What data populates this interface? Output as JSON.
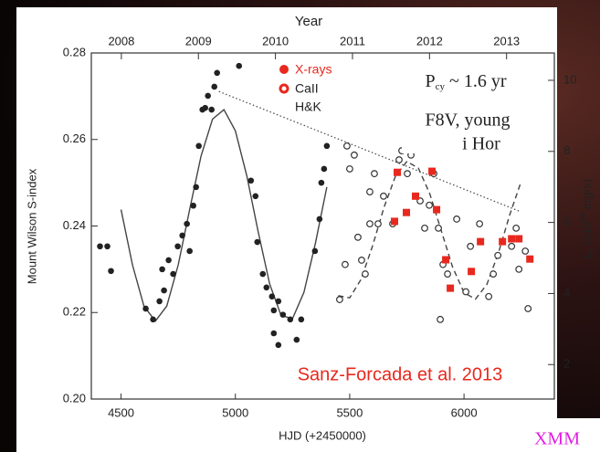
{
  "chart_data": {
    "type": "scatter",
    "xlabel": "HJD (+2450000)",
    "ylabel": "Mount Wilson S-index",
    "y2label": [
      "L",
      "x",
      " (x10",
      "28",
      " erg/s)"
    ],
    "x2label": "Year",
    "xlim": [
      4370,
      6395
    ],
    "xticks": [
      4500,
      5000,
      5500,
      6000
    ],
    "ylim": [
      0.2,
      0.28
    ],
    "yticks": [
      {
        "value": 0.2,
        "label": "0.20"
      },
      0.22,
      0.24,
      0.26,
      0.28
    ],
    "y2lim": [
      1.03,
      10.77
    ],
    "y2ticks": [
      2,
      4,
      6,
      8,
      10
    ],
    "x2lim": [
      2007.61,
      2013.62
    ],
    "x2ticks": [
      2008,
      2009,
      2010,
      2011,
      2012,
      2013
    ],
    "series": [
      {
        "name": "X-rays",
        "color": "#e8281e",
        "marker": "square",
        "axis": "y2",
        "x": [
          5696,
          5748,
          5708,
          5860,
          5788,
          5880,
          5920,
          5940,
          6032,
          6072,
          6168,
          6208,
          6240,
          6288
        ],
        "values": [
          6.03,
          6.28,
          7.41,
          7.44,
          6.74,
          6.36,
          4.95,
          4.15,
          4.62,
          5.46,
          5.46,
          5.54,
          5.54,
          4.97
        ]
      },
      {
        "color": "#222222",
        "marker": "filled",
        "x": [
          4408,
          4440,
          4456,
          4608,
          4640,
          4668,
          4688,
          4680,
          4708,
          4728,
          4748,
          4768,
          4788,
          4800,
          4816,
          4828,
          4840,
          4856,
          4868,
          4880,
          4896,
          4920,
          4908,
          5016,
          5068,
          5088,
          5096,
          5120,
          5136,
          5160,
          5168,
          5188,
          5208,
          5240,
          5168,
          5188,
          5268,
          5288,
          5348,
          5368,
          5376,
          5388,
          5400
        ],
        "values": [
          0.2353,
          0.2353,
          0.2296,
          0.2209,
          0.2184,
          0.2226,
          0.2251,
          0.23,
          0.2321,
          0.2289,
          0.2353,
          0.2378,
          0.2405,
          0.2342,
          0.2447,
          0.249,
          0.2585,
          0.2669,
          0.2673,
          0.2701,
          0.2669,
          0.2754,
          0.2722,
          0.277,
          0.2505,
          0.2469,
          0.2363,
          0.2289,
          0.2258,
          0.2237,
          0.2205,
          0.2226,
          0.2195,
          0.2184,
          0.2152,
          0.2125,
          0.2137,
          0.2184,
          0.2342,
          0.2416,
          0.25,
          0.2532,
          0.2585
        ]
      },
      {
        "name_lines": [
          "CaII",
          "H&K"
        ],
        "color": "#333333",
        "marker": "open",
        "legend_color": "#e8281e",
        "x": [
          5456,
          5480,
          5488,
          5500,
          5520,
          5536,
          5552,
          5568,
          5588,
          5588,
          5608,
          5624,
          5648,
          5688,
          5716,
          5728,
          5752,
          5768,
          5788,
          5808,
          5828,
          5848,
          5868,
          5888,
          5908,
          5928,
          5896,
          5968,
          6008,
          6028,
          6068,
          6108,
          6128,
          6148,
          6208,
          6228,
          6240,
          6268,
          6280
        ],
        "values": [
          0.223,
          0.2311,
          0.2585,
          0.2532,
          0.2564,
          0.2374,
          0.2321,
          0.2289,
          0.2479,
          0.2405,
          0.2521,
          0.2405,
          0.2469,
          0.2405,
          0.2553,
          0.2574,
          0.2521,
          0.2564,
          0.2627,
          0.2458,
          0.2395,
          0.2448,
          0.2521,
          0.2395,
          0.2311,
          0.2289,
          0.2184,
          0.2416,
          0.2248,
          0.2353,
          0.2405,
          0.2237,
          0.2289,
          0.2332,
          0.2353,
          0.2395,
          0.23,
          0.2342,
          0.2209
        ]
      }
    ],
    "fits": [
      {
        "style": "solid",
        "x": [
          4500,
          4550,
          4600,
          4650,
          4700,
          4750,
          4800,
          4850,
          4900,
          4950,
          5000,
          5050,
          5100,
          5150,
          5200,
          5250,
          5300,
          5350,
          5400
        ],
        "values": [
          0.2438,
          0.231,
          0.2215,
          0.218,
          0.2215,
          0.231,
          0.2438,
          0.2562,
          0.2647,
          0.2669,
          0.262,
          0.2516,
          0.2386,
          0.2266,
          0.2193,
          0.2186,
          0.2247,
          0.236,
          0.249
        ]
      },
      {
        "style": "dashed",
        "x": [
          5450,
          5500,
          5550,
          5600,
          5650,
          5700,
          5750,
          5800,
          5850,
          5900,
          5950,
          6000,
          6050,
          6100,
          6150,
          6200,
          6250
        ],
        "values": [
          0.2239,
          0.2234,
          0.2277,
          0.2354,
          0.2443,
          0.2515,
          0.2549,
          0.2534,
          0.2475,
          0.239,
          0.2305,
          0.2246,
          0.2231,
          0.2265,
          0.2337,
          0.2426,
          0.2503
        ]
      },
      {
        "style": "dotted",
        "x": [
          4928,
          6248
        ],
        "values": [
          0.2711,
          0.2433
        ]
      }
    ],
    "annotations": {
      "period": [
        "P",
        "cy",
        " ~ 1.6 yr"
      ],
      "type": "F8V, young",
      "star": "i Hor",
      "credit": "Sanz-Forcada et al. 2013",
      "mission": "XMM"
    }
  }
}
